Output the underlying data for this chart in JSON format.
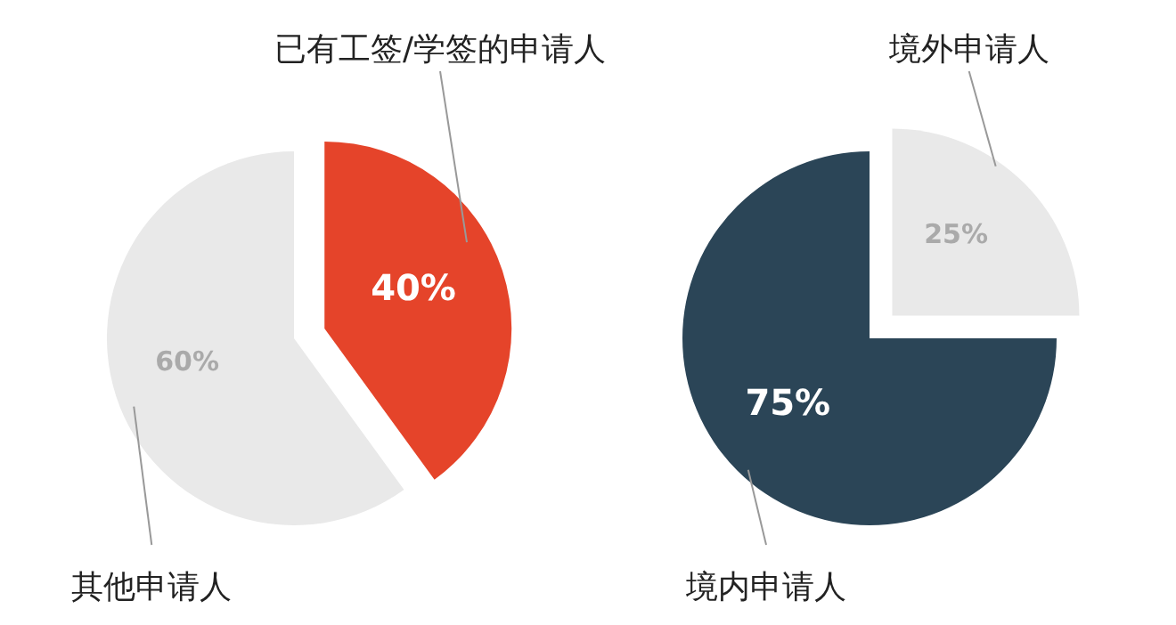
{
  "chart_data": [
    {
      "type": "pie",
      "categories": [
        "已有工签/学签的申请人",
        "其他申请人"
      ],
      "values": [
        40,
        60
      ],
      "colors": [
        "#e5442a",
        "#e9e9e9"
      ],
      "value_labels": [
        "40%",
        "60%"
      ]
    },
    {
      "type": "pie",
      "categories": [
        "境外申请人",
        "境内申请人"
      ],
      "values": [
        25,
        75
      ],
      "colors": [
        "#e9e9e9",
        "#2b4557"
      ],
      "value_labels": [
        "25%",
        "75%"
      ]
    }
  ]
}
